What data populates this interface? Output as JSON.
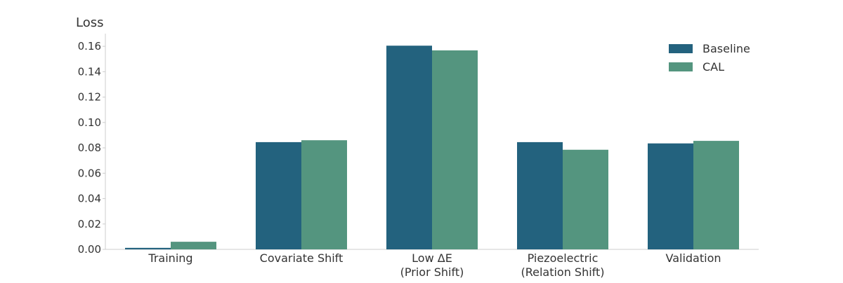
{
  "chart_data": {
    "type": "bar",
    "title": "",
    "xlabel": "",
    "ylabel": "Loss",
    "ylim": [
      0,
      0.17
    ],
    "yticks": [
      "0.00",
      "0.02",
      "0.04",
      "0.06",
      "0.08",
      "0.10",
      "0.12",
      "0.14",
      "0.16"
    ],
    "grid": false,
    "legend_position": "top-right",
    "categories": [
      [
        "Training"
      ],
      [
        "Covariate Shift"
      ],
      [
        "Low ΔE",
        "(Prior Shift)"
      ],
      [
        "Piezoelectric",
        "(Relation Shift)"
      ],
      [
        "Validation"
      ]
    ],
    "series": [
      {
        "name": "Baseline",
        "color": "#23627e",
        "values": [
          0.0012,
          0.0845,
          0.1605,
          0.0845,
          0.0835
        ]
      },
      {
        "name": "CAL",
        "color": "#54957f",
        "values": [
          0.006,
          0.086,
          0.1568,
          0.0785,
          0.0855
        ]
      }
    ]
  }
}
